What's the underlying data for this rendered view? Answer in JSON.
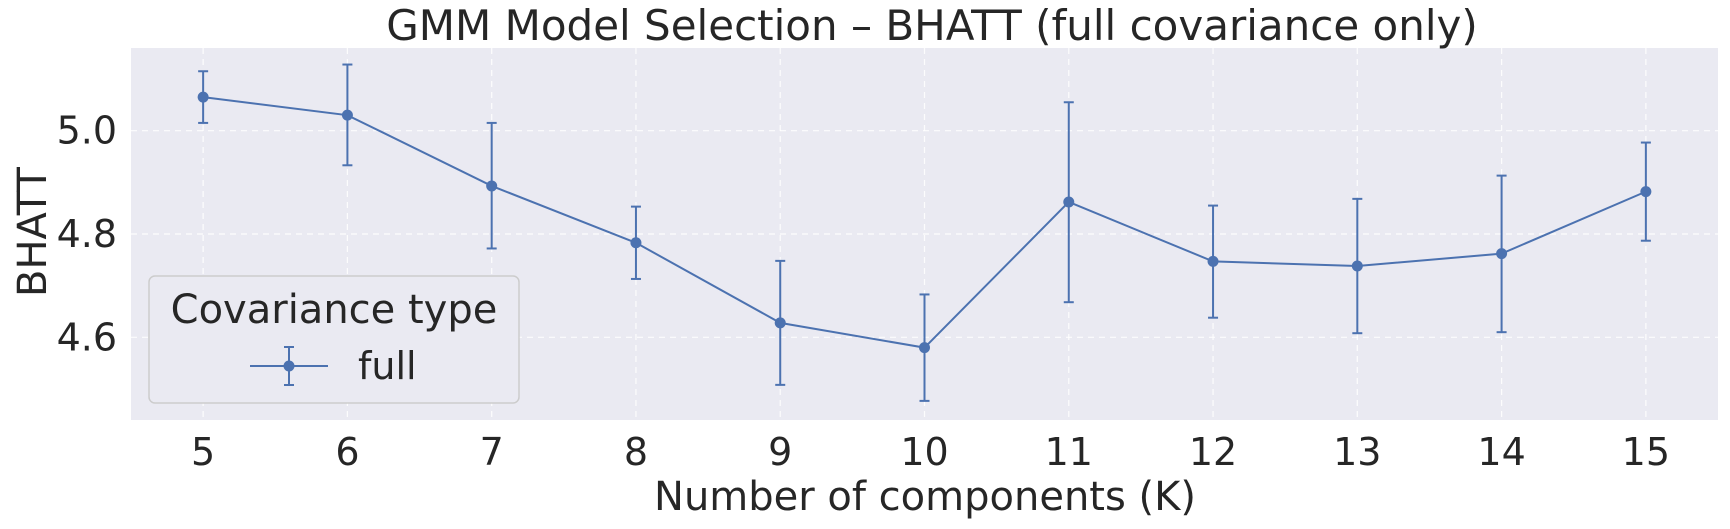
{
  "chart_data": {
    "type": "line",
    "title": "GMM Model Selection – BHATT (full covariance only)",
    "xlabel": "Number of components (K)",
    "ylabel": "BHATT",
    "x": [
      5,
      6,
      7,
      8,
      9,
      10,
      11,
      12,
      13,
      14,
      15
    ],
    "xlim": [
      4.5,
      15.5
    ],
    "ylim": [
      4.44,
      5.16
    ],
    "yticks": [
      4.6,
      4.8,
      5.0
    ],
    "ytick_labels": [
      "4.6",
      "4.8",
      "5.0"
    ],
    "xtick_labels": [
      "5",
      "6",
      "7",
      "8",
      "9",
      "10",
      "11",
      "12",
      "13",
      "14",
      "15"
    ],
    "grid": true,
    "legend": {
      "title": "Covariance type",
      "placement": "lower-left"
    },
    "series": [
      {
        "name": "full",
        "color": "#4c72b0",
        "values": [
          5.065,
          5.03,
          4.893,
          4.783,
          4.628,
          4.58,
          4.862,
          4.747,
          4.738,
          4.762,
          4.882
        ],
        "err_low": [
          5.015,
          4.933,
          4.772,
          4.713,
          4.508,
          4.477,
          4.668,
          4.638,
          4.608,
          4.61,
          4.787
        ],
        "err_high": [
          5.115,
          5.128,
          5.015,
          4.853,
          4.748,
          4.683,
          5.055,
          4.855,
          4.868,
          4.913,
          4.977
        ]
      }
    ],
    "plot_background": "#eaeaf2"
  }
}
